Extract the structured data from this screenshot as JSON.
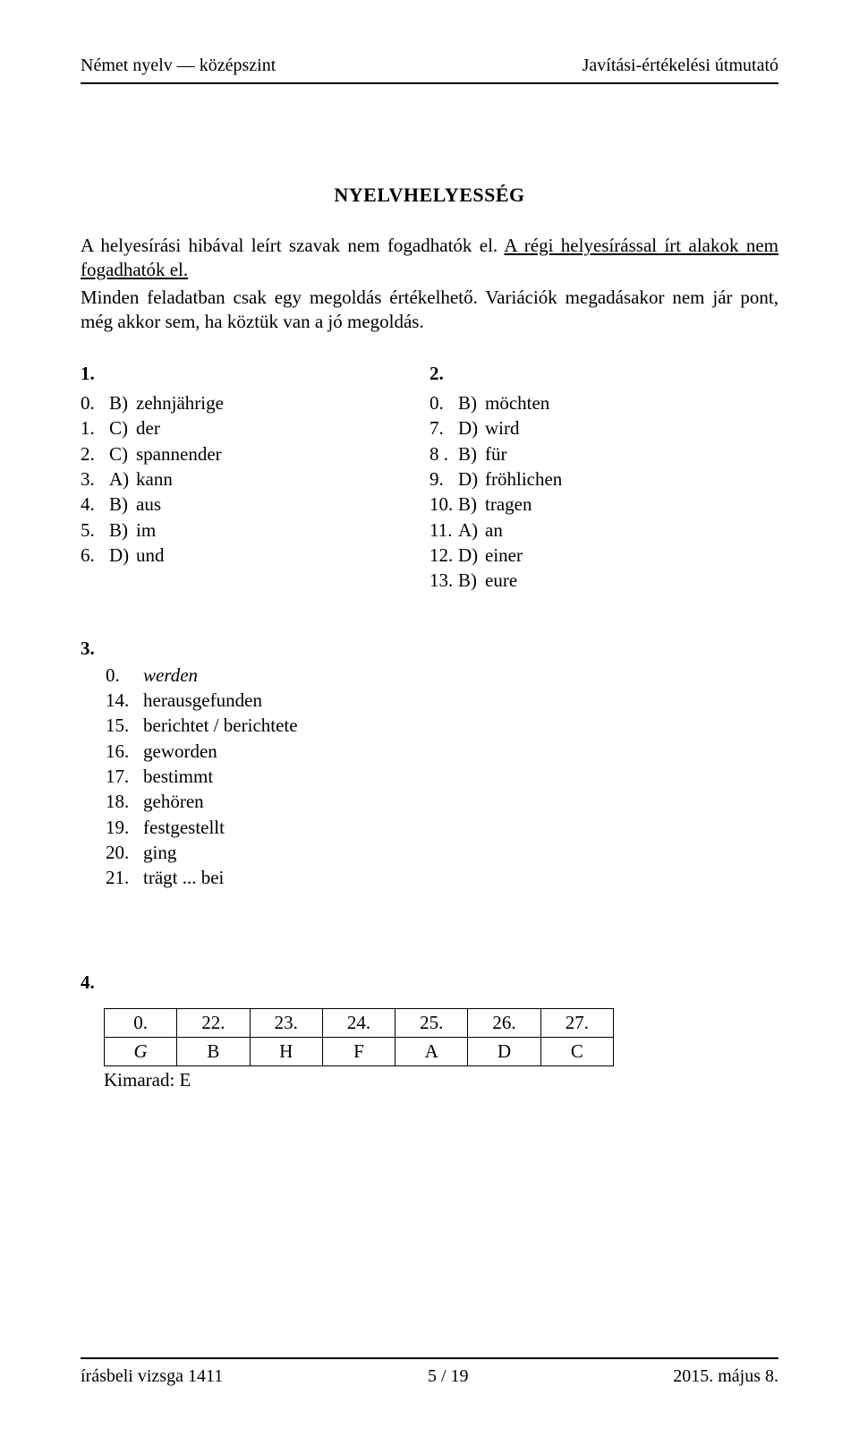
{
  "header": {
    "left": "Német nyelv — középszint",
    "right": "Javítási-értékelési útmutató"
  },
  "title": "NYELVHELYESSÉG",
  "para1_a": "A helyesírási hibával leírt szavak nem fogadhatók el. ",
  "para1_u": "A régi helyesírással írt alakok nem fogadhatók el.",
  "para2": "Minden feladatban csak egy megoldás értékelhető. Variációk megadásakor nem jár pont, még akkor sem, ha köztük van a jó megoldás.",
  "sec1": {
    "label": "1.",
    "items": [
      {
        "n": "0.",
        "l": "B)",
        "w": "zehnjährige"
      },
      {
        "n": "1.",
        "l": "C)",
        "w": "der"
      },
      {
        "n": "2.",
        "l": "C)",
        "w": "spannender"
      },
      {
        "n": "3.",
        "l": "A)",
        "w": "kann"
      },
      {
        "n": "4.",
        "l": "B)",
        "w": "aus"
      },
      {
        "n": "5.",
        "l": "B)",
        "w": "im"
      },
      {
        "n": "6.",
        "l": "D)",
        "w": "und"
      }
    ]
  },
  "sec2": {
    "label": "2.",
    "items": [
      {
        "n": "0.",
        "l": "B)",
        "w": "möchten"
      },
      {
        "n": "7.",
        "l": "D)",
        "w": "wird"
      },
      {
        "n": "8 .",
        "l": "B)",
        "w": "für"
      },
      {
        "n": "9.",
        "l": "D)",
        "w": "fröhlichen"
      },
      {
        "n": "10.",
        "l": "B)",
        "w": "tragen"
      },
      {
        "n": "11.",
        "l": "A)",
        "w": "an"
      },
      {
        "n": "12.",
        "l": "D)",
        "w": "einer"
      },
      {
        "n": "13.",
        "l": "B)",
        "w": "eure"
      }
    ]
  },
  "sec3": {
    "label": "3.",
    "items": [
      {
        "n": "0.",
        "w": "werden",
        "italic": true
      },
      {
        "n": "14.",
        "w": "herausgefunden"
      },
      {
        "n": "15.",
        "w": "berichtet / berichtete"
      },
      {
        "n": "16.",
        "w": "geworden"
      },
      {
        "n": "17.",
        "w": "bestimmt"
      },
      {
        "n": "18.",
        "w": "gehören"
      },
      {
        "n": "19.",
        "w": "festgestellt"
      },
      {
        "n": "20.",
        "w": "ging"
      },
      {
        "n": "21.",
        "w": "trägt  ... bei"
      }
    ]
  },
  "sec4": {
    "label": "4.",
    "head": [
      "0.",
      "22.",
      "23.",
      "24.",
      "25.",
      "26.",
      "27."
    ],
    "row": [
      "G",
      "B",
      "H",
      "F",
      "A",
      "D",
      "C"
    ],
    "row_first_italic": true,
    "kimarad": "Kimarad: E"
  },
  "footer": {
    "left": "írásbeli vizsga 1411",
    "center": "5 / 19",
    "right": "2015. május 8."
  }
}
